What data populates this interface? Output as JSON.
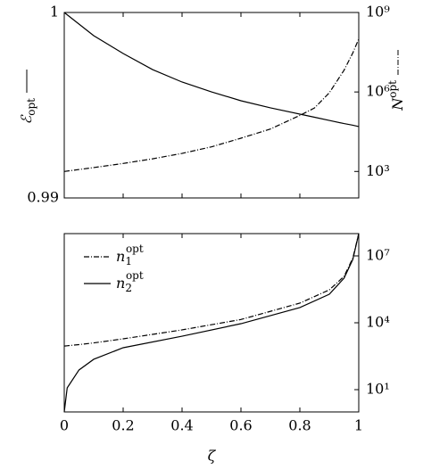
{
  "chart_data": [
    {
      "type": "line",
      "y_label": {
        "text": "ℰ",
        "sub": "opt"
      },
      "y2_label": {
        "text": "N",
        "sup": "opt"
      },
      "x": [
        0,
        0.1,
        0.2,
        0.3,
        0.4,
        0.5,
        0.6,
        0.7,
        0.8,
        0.85,
        0.9,
        0.95,
        0.98,
        1
      ],
      "xlim": [
        0,
        1
      ],
      "xticks": [
        0,
        0.2,
        0.4,
        0.6,
        0.8,
        1
      ],
      "ylim": [
        0.99,
        1
      ],
      "yticks": [
        0.99,
        1
      ],
      "y2lim": [
        100,
        1000000000
      ],
      "y2scale": "log",
      "y2ticks": [
        {
          "value": 1000,
          "label": "10³"
        },
        {
          "value": 1000000,
          "label": "10⁶"
        },
        {
          "value": 1000000000,
          "label": "10⁹"
        }
      ],
      "series": [
        {
          "color": "#000000",
          "dash": "solid",
          "values": [
            1,
            0.99875,
            0.99779,
            0.99692,
            0.99625,
            0.99572,
            0.99524,
            0.99486,
            0.99452,
            0.99435,
            0.99418,
            0.99401,
            0.99392,
            0.99385
          ]
        },
        {
          "color": "#000000",
          "dash": "dashdot",
          "axis": "y2",
          "values": [
            1000,
            1400,
            2000,
            3000,
            4800,
            8500,
            18000,
            40000,
            130000,
            250000,
            930000,
            6600000,
            30000000,
            100000000
          ]
        }
      ]
    },
    {
      "type": "line",
      "x_label": "ζ",
      "x": [
        0,
        0.01,
        0.05,
        0.1,
        0.2,
        0.4,
        0.6,
        0.8,
        0.9,
        0.95,
        0.98,
        1
      ],
      "xlim": [
        0,
        1
      ],
      "xticks": [
        0,
        0.2,
        0.4,
        0.6,
        0.8,
        1
      ],
      "ylim": [
        1,
        100000000
      ],
      "yscale": "log",
      "yticks": [
        {
          "value": 10,
          "label": "10¹"
        },
        {
          "value": 10000,
          "label": "10⁴"
        },
        {
          "value": 10000000,
          "label": "10⁷"
        }
      ],
      "legend": "top-left",
      "series": [
        {
          "name": "n",
          "subscript": "1",
          "superscript": "opt",
          "color": "#000000",
          "dash": "dashdot",
          "values": [
            900,
            930,
            1050,
            1250,
            1900,
            4800,
            14000,
            76000,
            300000,
            1200000,
            8000000,
            100000000
          ]
        },
        {
          "name": "n",
          "subscript": "2",
          "superscript": "opt",
          "color": "#000000",
          "dash": "solid",
          "values": [
            1,
            12,
            76,
            230,
            760,
            2500,
            9100,
            48000,
            190000,
            1000000,
            7000000,
            100000000
          ]
        }
      ]
    }
  ]
}
